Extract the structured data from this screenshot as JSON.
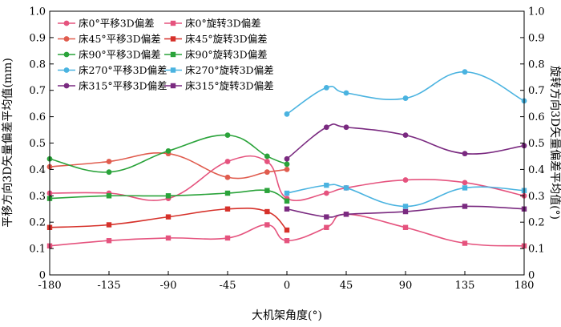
{
  "chart_data": {
    "type": "line",
    "xlabel": "大机架角度(°)",
    "ylabel_left": "平移方向3D矢量偏差平均值(mm)",
    "ylabel_right": "旋转方向3D矢量偏差平均值(°)",
    "xlim": [
      -180,
      180
    ],
    "ylim": [
      0,
      1.0
    ],
    "x_ticks": [
      "-180",
      "-135",
      "-90",
      "-45",
      "0",
      "45",
      "90",
      "135",
      "180"
    ],
    "y_ticks": [
      "0",
      "0.1",
      "0.2",
      "0.3",
      "0.4",
      "0.5",
      "0.6",
      "0.7",
      "0.8",
      "0.9",
      "1.0"
    ],
    "grid": false,
    "legend_position": "top-left",
    "series": [
      {
        "name": "床0°平移3D偏差",
        "axis": "left",
        "marker": "circle",
        "color": "#e5537e",
        "x": [
          -180,
          -135,
          -90,
          -45,
          -15,
          0,
          30,
          45,
          90,
          135,
          180
        ],
        "y": [
          0.31,
          0.31,
          0.29,
          0.43,
          0.43,
          0.29,
          0.31,
          0.33,
          0.36,
          0.35,
          0.3
        ]
      },
      {
        "name": "床0°旋转3D偏差",
        "axis": "right",
        "marker": "square",
        "color": "#e5537e",
        "x": [
          -180,
          -135,
          -90,
          -45,
          -15,
          0,
          30,
          45,
          90,
          135,
          180
        ],
        "y": [
          0.11,
          0.13,
          0.14,
          0.14,
          0.19,
          0.13,
          0.18,
          0.23,
          0.18,
          0.12,
          0.11
        ]
      },
      {
        "name": "床45°平移3D偏差",
        "axis": "left",
        "marker": "circle",
        "color": "#e05c4e",
        "x": [
          -180,
          -135,
          -90,
          -45,
          -15,
          0
        ],
        "y": [
          0.41,
          0.43,
          0.46,
          0.37,
          0.39,
          0.4
        ]
      },
      {
        "name": "床45°旋转3D偏差",
        "axis": "right",
        "marker": "square",
        "color": "#d6312a",
        "x": [
          -180,
          -135,
          -90,
          -45,
          -15,
          0
        ],
        "y": [
          0.18,
          0.19,
          0.22,
          0.25,
          0.24,
          0.17
        ]
      },
      {
        "name": "床90°平移3D偏差",
        "axis": "left",
        "marker": "circle",
        "color": "#2aa33a",
        "x": [
          -180,
          -135,
          -90,
          -45,
          -15,
          0
        ],
        "y": [
          0.44,
          0.39,
          0.47,
          0.53,
          0.45,
          0.42
        ]
      },
      {
        "name": "床90°旋转3D偏差",
        "axis": "right",
        "marker": "square",
        "color": "#2aa33a",
        "x": [
          -180,
          -135,
          -90,
          -45,
          -15,
          0
        ],
        "y": [
          0.29,
          0.3,
          0.3,
          0.31,
          0.32,
          0.28
        ]
      },
      {
        "name": "床270°平移3D偏差",
        "axis": "left",
        "marker": "circle",
        "color": "#4ab3e0",
        "x": [
          0,
          30,
          45,
          90,
          135,
          180
        ],
        "y": [
          0.61,
          0.71,
          0.69,
          0.67,
          0.77,
          0.66
        ]
      },
      {
        "name": "床270°旋转3D偏差",
        "axis": "right",
        "marker": "square",
        "color": "#4ab3e0",
        "x": [
          0,
          30,
          45,
          90,
          135,
          180
        ],
        "y": [
          0.31,
          0.34,
          0.33,
          0.26,
          0.33,
          0.32
        ]
      },
      {
        "name": "床315°平移3D偏差",
        "axis": "left",
        "marker": "circle",
        "color": "#7a2a80",
        "x": [
          0,
          30,
          45,
          90,
          135,
          180
        ],
        "y": [
          0.44,
          0.56,
          0.56,
          0.53,
          0.46,
          0.49
        ]
      },
      {
        "name": "床315°旋转3D偏差",
        "axis": "right",
        "marker": "square",
        "color": "#7a2a80",
        "x": [
          0,
          30,
          45,
          90,
          135,
          180
        ],
        "y": [
          0.25,
          0.22,
          0.23,
          0.24,
          0.26,
          0.25
        ]
      }
    ]
  }
}
